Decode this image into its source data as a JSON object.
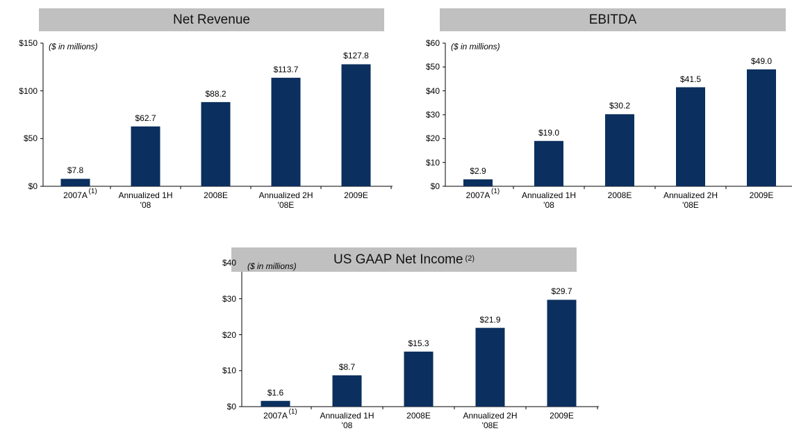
{
  "chart_data": [
    {
      "type": "bar",
      "title": "Net Revenue",
      "subtitle": "($ in millions)",
      "categories": [
        "2007A",
        "Annualized 1H '08",
        "2008E",
        "Annualized 2H '08E",
        "2009E"
      ],
      "category_notes": [
        "(1)",
        null,
        null,
        null,
        null
      ],
      "values": [
        7.8,
        62.7,
        88.2,
        113.7,
        127.8
      ],
      "value_labels": [
        "$7.8",
        "$62.7",
        "$88.2",
        "$113.7",
        "$127.8"
      ],
      "color": "#0b2f5e",
      "ylim": [
        0,
        150
      ],
      "yticks": [
        {
          "value": 0,
          "label": "$0"
        },
        {
          "value": 50,
          "label": "$50"
        },
        {
          "value": 100,
          "label": "$100"
        },
        {
          "value": 150,
          "label": "$150"
        }
      ]
    },
    {
      "type": "bar",
      "title": "EBITDA",
      "subtitle": "($ in millions)",
      "categories": [
        "2007A",
        "Annualized 1H '08",
        "2008E",
        "Annualized 2H '08E",
        "2009E"
      ],
      "category_notes": [
        "(1)",
        null,
        null,
        null,
        null
      ],
      "values": [
        2.9,
        19.0,
        30.2,
        41.5,
        49.0
      ],
      "value_labels": [
        "$2.9",
        "$19.0",
        "$30.2",
        "$41.5",
        "$49.0"
      ],
      "color": "#0b2f5e",
      "ylim": [
        0,
        60
      ],
      "yticks": [
        {
          "value": 0,
          "label": "$0"
        },
        {
          "value": 10,
          "label": "$10"
        },
        {
          "value": 20,
          "label": "$20"
        },
        {
          "value": 30,
          "label": "$30"
        },
        {
          "value": 40,
          "label": "$40"
        },
        {
          "value": 50,
          "label": "$50"
        },
        {
          "value": 60,
          "label": "$60"
        }
      ]
    },
    {
      "type": "bar",
      "title": "US GAAP Net Income",
      "title_note": "(2)",
      "subtitle": "($ in millions)",
      "categories": [
        "2007A",
        "Annualized 1H '08",
        "2008E",
        "Annualized 2H '08E",
        "2009E"
      ],
      "category_notes": [
        "(1)",
        null,
        null,
        null,
        null
      ],
      "values": [
        1.6,
        8.7,
        15.3,
        21.9,
        29.7
      ],
      "value_labels": [
        "$1.6",
        "$8.7",
        "$15.3",
        "$21.9",
        "$29.7"
      ],
      "color": "#0b2f5e",
      "ylim": [
        0,
        40
      ],
      "yticks": [
        {
          "value": 0,
          "label": "$0"
        },
        {
          "value": 10,
          "label": "$10"
        },
        {
          "value": 20,
          "label": "$20"
        },
        {
          "value": 30,
          "label": "$30"
        },
        {
          "value": 40,
          "label": "$40"
        }
      ]
    }
  ]
}
